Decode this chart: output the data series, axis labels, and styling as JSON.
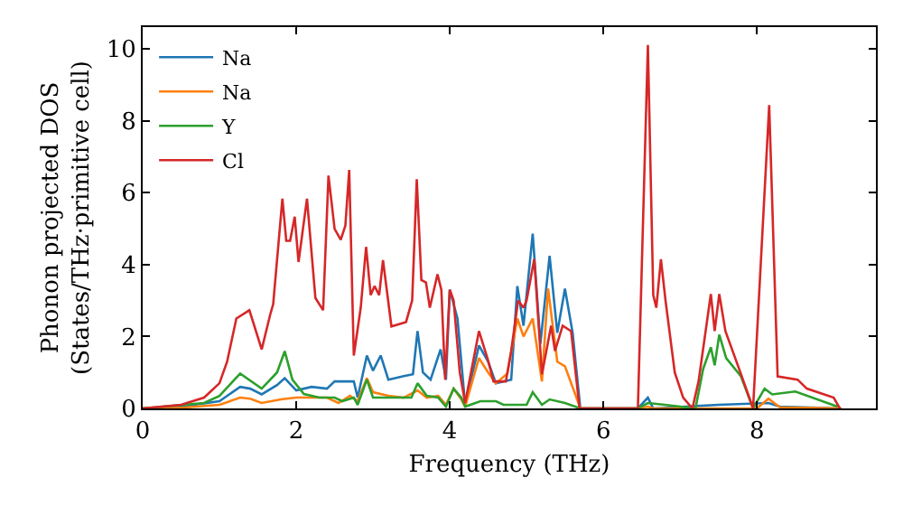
{
  "chart_data": {
    "type": "line",
    "xlabel": "Frequency (THz)",
    "ylabel": "Phonon projected DOS\n(States/THz·primitive cell)",
    "xlim": [
      0,
      9.55
    ],
    "ylim": [
      0,
      10.6
    ],
    "xticks": [
      0,
      2,
      4,
      6,
      8
    ],
    "yticks": [
      0,
      2,
      4,
      6,
      8,
      10
    ],
    "grid": false,
    "legend": "top left",
    "marker": "none",
    "line_style": "solid",
    "series": [
      {
        "name": "Na",
        "color": "#1f77b4",
        "x": [
          0,
          0.5,
          1.0,
          1.27,
          1.4,
          1.55,
          1.75,
          1.85,
          2.0,
          2.2,
          2.4,
          2.5,
          2.75,
          2.8,
          2.92,
          3.0,
          3.1,
          3.2,
          3.4,
          3.52,
          3.58,
          3.65,
          3.75,
          3.88,
          3.95,
          4.0,
          4.1,
          4.2,
          4.38,
          4.5,
          4.6,
          4.8,
          4.88,
          4.96,
          5.08,
          5.18,
          5.3,
          5.4,
          5.5,
          5.6,
          5.7,
          6.45,
          6.58,
          6.65,
          7.5,
          8.15,
          8.3,
          9.1
        ],
        "values": [
          0,
          0.05,
          0.2,
          0.6,
          0.55,
          0.39,
          0.65,
          0.84,
          0.5,
          0.6,
          0.55,
          0.75,
          0.75,
          0.3,
          1.47,
          1.05,
          1.47,
          0.8,
          0.9,
          0.95,
          2.15,
          1.0,
          0.8,
          1.64,
          0.8,
          3.3,
          2.5,
          0.1,
          1.75,
          1.3,
          0.7,
          0.8,
          3.4,
          2.3,
          4.86,
          1.8,
          4.24,
          2.1,
          3.33,
          2.1,
          0,
          0,
          0.3,
          0,
          0.1,
          0.15,
          0.05,
          0
        ]
      },
      {
        "name": "Na",
        "color": "#ff7f0e",
        "x": [
          0,
          0.5,
          1.0,
          1.27,
          1.4,
          1.55,
          1.8,
          2.0,
          2.2,
          2.4,
          2.55,
          2.7,
          2.8,
          2.92,
          3.0,
          3.2,
          3.4,
          3.58,
          3.7,
          3.85,
          3.95,
          4.05,
          4.15,
          4.2,
          4.38,
          4.5,
          4.6,
          4.75,
          4.88,
          4.96,
          5.08,
          5.2,
          5.28,
          5.4,
          5.5,
          5.65,
          5.7,
          6.45,
          6.58,
          6.65,
          8.0,
          8.15,
          8.3,
          9.1
        ],
        "values": [
          0,
          0.02,
          0.1,
          0.3,
          0.27,
          0.15,
          0.25,
          0.3,
          0.3,
          0.3,
          0.15,
          0.35,
          0.2,
          0.84,
          0.45,
          0.35,
          0.3,
          0.5,
          0.3,
          0.35,
          0.1,
          0.55,
          0.25,
          0.05,
          1.4,
          1.0,
          0.7,
          0.97,
          2.5,
          2.0,
          2.5,
          0.75,
          3.33,
          1.3,
          1.17,
          0.3,
          0,
          0,
          0.05,
          0,
          0,
          0.27,
          0.03,
          0
        ]
      },
      {
        "name": "Y",
        "color": "#2ca02c",
        "x": [
          0,
          0.8,
          1.0,
          1.27,
          1.55,
          1.75,
          1.85,
          1.95,
          2.1,
          2.3,
          2.5,
          2.6,
          2.75,
          2.8,
          2.92,
          3.0,
          3.3,
          3.5,
          3.58,
          3.7,
          3.85,
          3.95,
          4.05,
          4.15,
          4.2,
          4.4,
          4.6,
          4.7,
          5.0,
          5.08,
          5.2,
          5.3,
          5.5,
          5.7,
          6.45,
          6.58,
          6.8,
          7.2,
          7.3,
          7.4,
          7.45,
          7.51,
          7.6,
          7.79,
          7.95,
          8.1,
          8.2,
          8.5,
          9.05
        ],
        "values": [
          0,
          0.15,
          0.35,
          0.97,
          0.55,
          1.0,
          1.59,
          0.8,
          0.4,
          0.3,
          0.3,
          0.2,
          0.3,
          0.1,
          0.8,
          0.3,
          0.3,
          0.3,
          0.7,
          0.35,
          0.3,
          0.05,
          0.55,
          0.3,
          0.05,
          0.2,
          0.2,
          0.1,
          0.1,
          0.45,
          0.1,
          0.25,
          0.15,
          0,
          0,
          0.15,
          0.1,
          0,
          1.1,
          1.7,
          1.2,
          2.05,
          1.4,
          0.9,
          0,
          0.55,
          0.39,
          0.47,
          0.05
        ]
      },
      {
        "name": "Cl",
        "color": "#d62728",
        "x": [
          0,
          0.5,
          0.8,
          1.0,
          1.1,
          1.22,
          1.39,
          1.55,
          1.66,
          1.7,
          1.82,
          1.87,
          1.92,
          1.98,
          2.03,
          2.14,
          2.25,
          2.35,
          2.42,
          2.5,
          2.58,
          2.64,
          2.69,
          2.75,
          2.84,
          2.91,
          2.97,
          3.02,
          3.08,
          3.13,
          3.24,
          3.43,
          3.51,
          3.57,
          3.63,
          3.69,
          3.74,
          3.84,
          3.89,
          3.94,
          4.0,
          4.05,
          4.13,
          4.2,
          4.38,
          4.49,
          4.57,
          4.73,
          4.8,
          4.89,
          4.96,
          5.0,
          5.1,
          5.2,
          5.32,
          5.37,
          5.47,
          5.58,
          5.69,
          6.45,
          6.58,
          6.65,
          6.69,
          6.75,
          6.81,
          6.93,
          7.04,
          7.16,
          7.24,
          7.4,
          7.45,
          7.51,
          7.59,
          7.79,
          7.95,
          8.16,
          8.27,
          8.53,
          8.65,
          9.0,
          9.08
        ],
        "values": [
          0,
          0.1,
          0.3,
          0.7,
          1.3,
          2.5,
          2.73,
          1.64,
          2.6,
          2.9,
          5.83,
          4.66,
          4.66,
          5.33,
          4.07,
          5.83,
          3.07,
          2.73,
          6.47,
          4.99,
          4.69,
          5.08,
          6.63,
          1.47,
          2.8,
          4.49,
          3.15,
          3.4,
          3.15,
          4.12,
          2.28,
          2.4,
          3.0,
          6.37,
          3.57,
          3.5,
          2.8,
          3.73,
          3.3,
          0.8,
          3.3,
          3.0,
          1.0,
          0.15,
          2.15,
          1.4,
          0.75,
          0.75,
          1.6,
          3.0,
          2.8,
          3.0,
          4.15,
          0.95,
          2.3,
          1.6,
          2.3,
          2.15,
          0,
          0,
          10.1,
          3.15,
          2.8,
          4.15,
          3.0,
          1.0,
          0.3,
          0,
          0.75,
          3.18,
          2.15,
          3.18,
          2.15,
          0.97,
          0,
          8.43,
          0.89,
          0.8,
          0.55,
          0.3,
          0
        ]
      }
    ]
  }
}
